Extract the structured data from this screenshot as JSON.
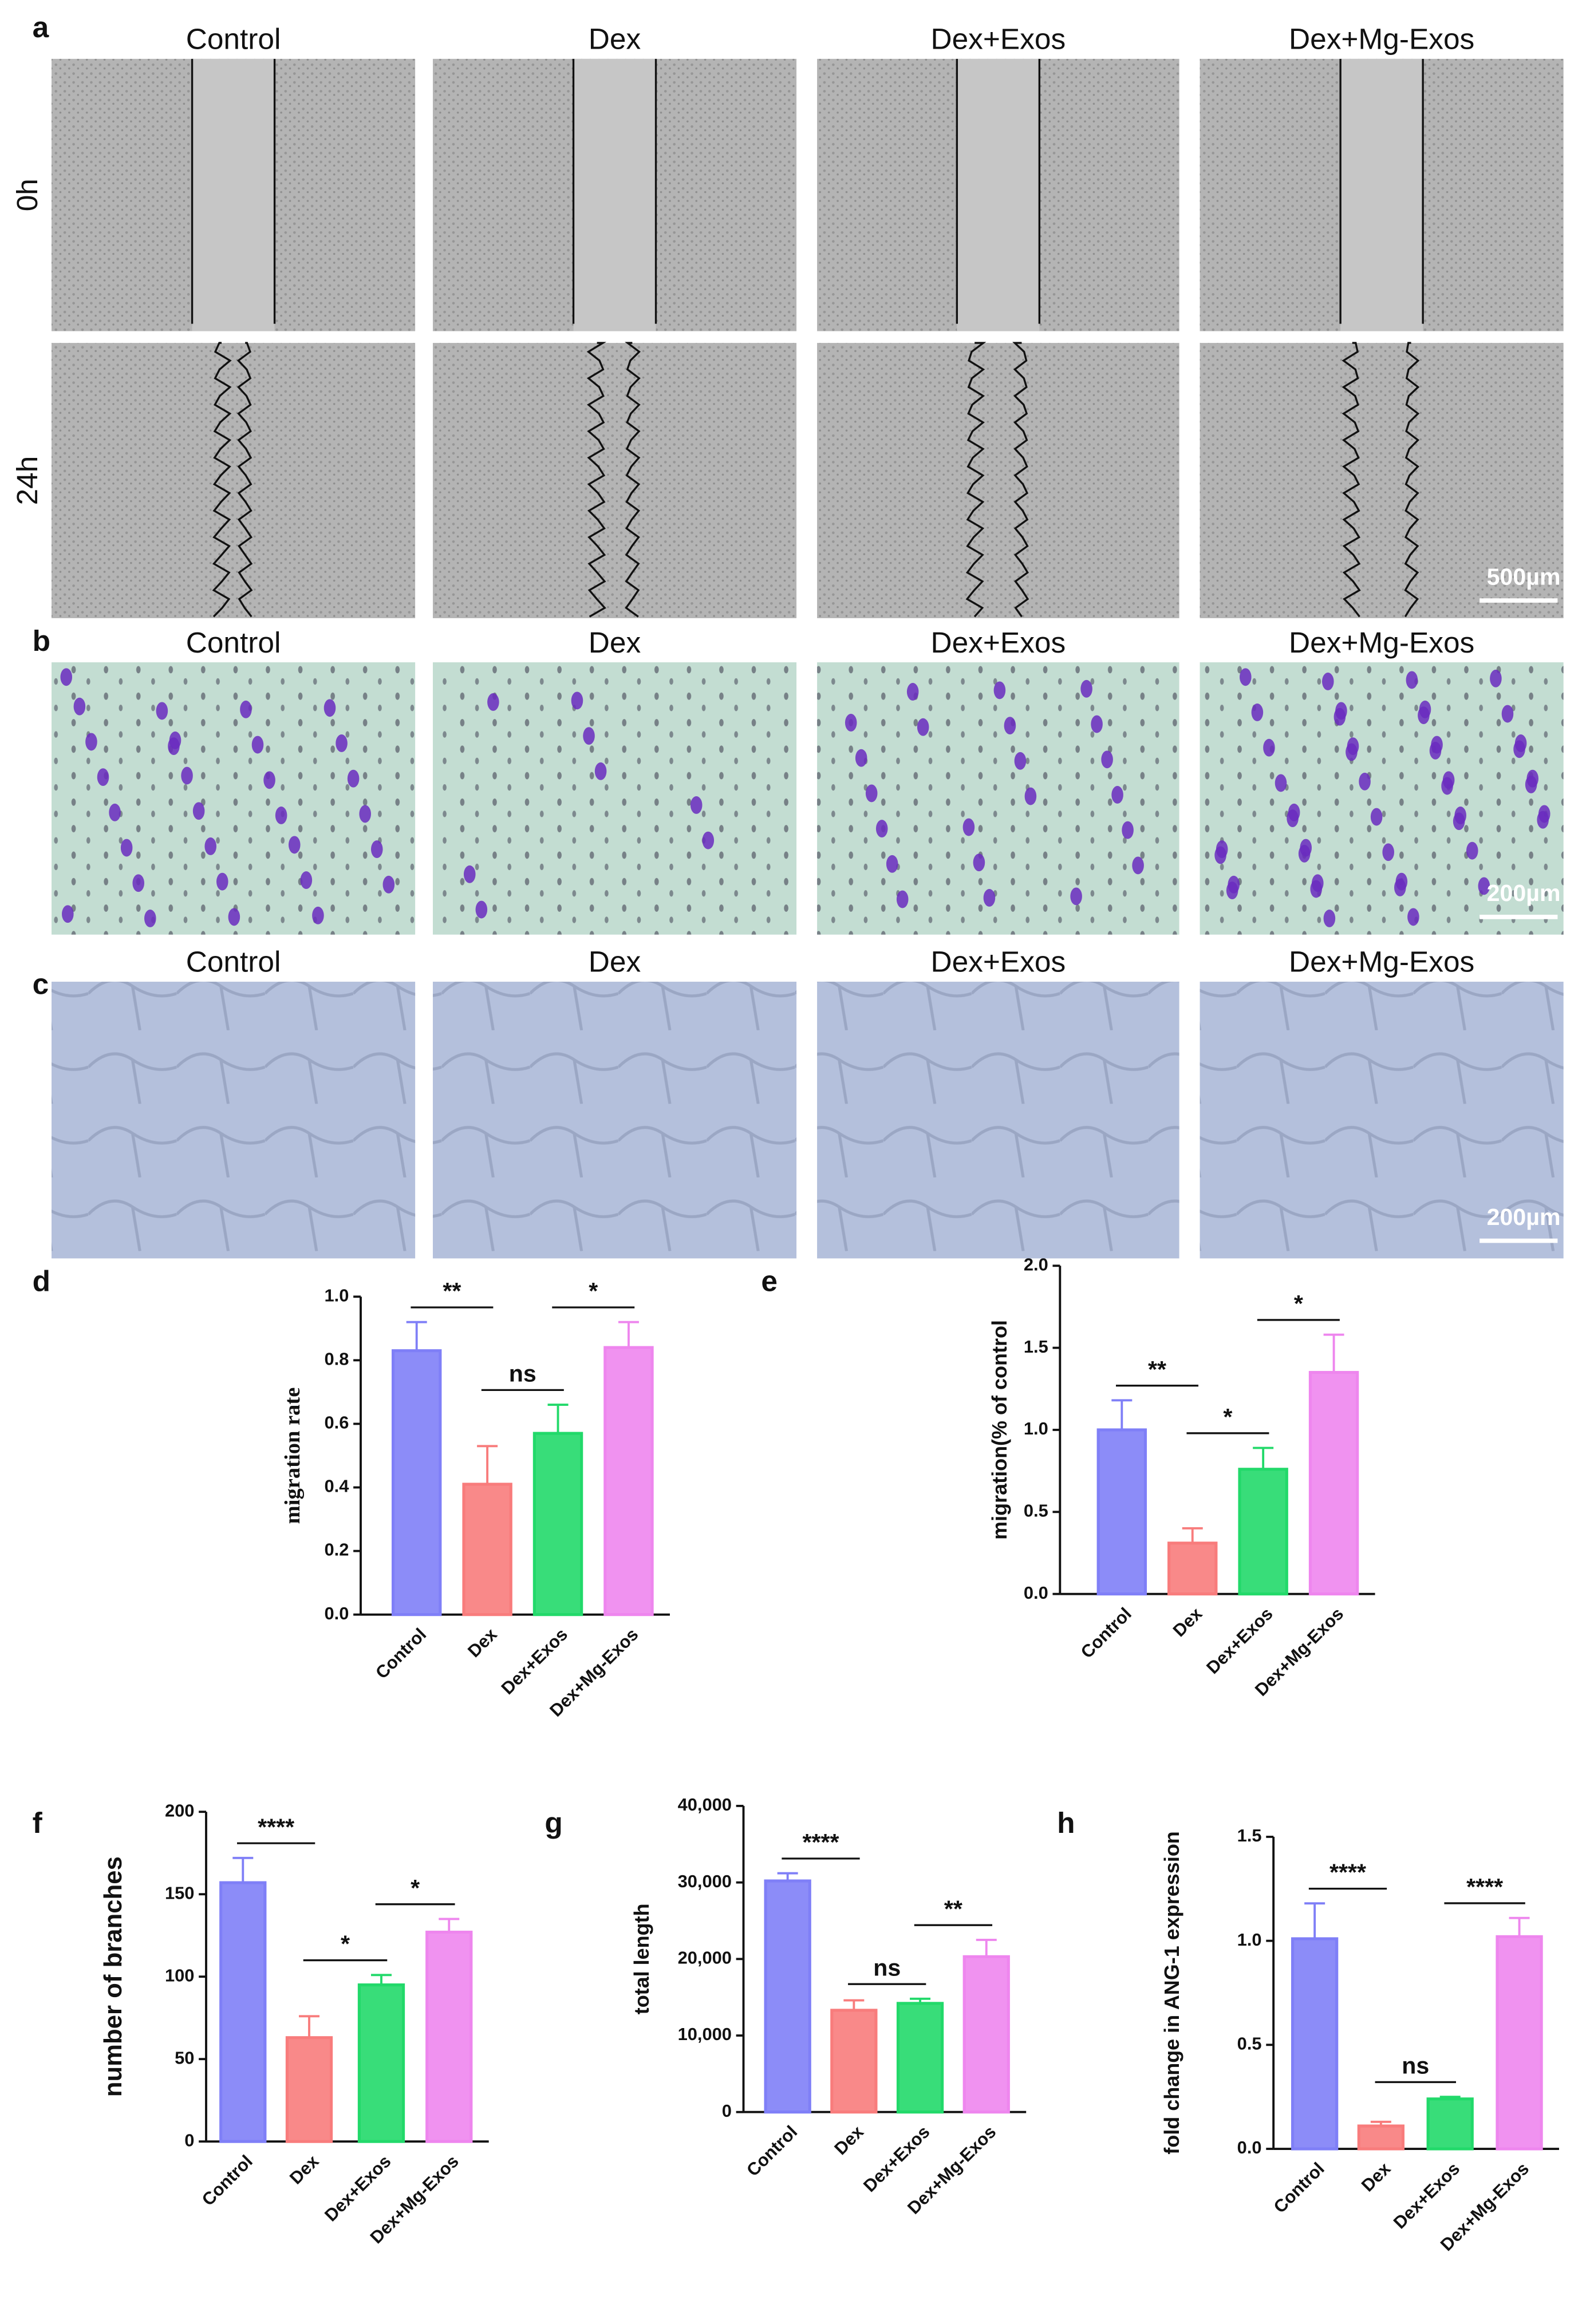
{
  "image_panels": [
    {
      "letter": "a",
      "columns": [
        "Control",
        "Dex",
        "Dex+Exos",
        "Dex+Mg-Exos"
      ],
      "rows": [
        "0h",
        "24h"
      ],
      "scale_bar": "500µm"
    },
    {
      "letter": "b",
      "columns": [
        "Control",
        "Dex",
        "Dex+Exos",
        "Dex+Mg-Exos"
      ],
      "scale_bar": "200µm"
    },
    {
      "letter": "c",
      "columns": [
        "Control",
        "Dex",
        "Dex+Exos",
        "Dex+Mg-Exos"
      ],
      "scale_bar": "200µm"
    }
  ],
  "chart_data": [
    {
      "type": "bar",
      "label": "d",
      "y_label": "migration rate",
      "categories": [
        "Control",
        "Dex",
        "Dex+Exos",
        "Dex+Mg-Exos"
      ],
      "values": [
        0.83,
        0.41,
        0.57,
        0.84
      ],
      "errors": [
        0.09,
        0.12,
        0.09,
        0.08
      ],
      "colors": [
        "#7f7ff7",
        "#f87c7c",
        "#22d96a",
        "#ee86ee"
      ],
      "ylim": [
        0,
        1
      ],
      "yticks": [
        {
          "value": 0,
          "label": "0.0"
        },
        0.2,
        0.4,
        0.6,
        0.8,
        {
          "value": 1,
          "label": "1.0"
        }
      ],
      "annotations": [
        "**",
        "ns",
        "*"
      ]
    },
    {
      "type": "bar",
      "label": "e",
      "y_label": "migration(% of control",
      "categories": [
        "Control",
        "Dex",
        "Dex+Exos",
        "Dex+Mg-Exos"
      ],
      "values": [
        1.0,
        0.31,
        0.76,
        1.35
      ],
      "errors": [
        0.18,
        0.09,
        0.13,
        0.23
      ],
      "colors": [
        "#7f7ff7",
        "#f87c7c",
        "#22d96a",
        "#ee86ee"
      ],
      "ylim": [
        0,
        2
      ],
      "yticks": [
        {
          "value": 0,
          "label": "0.0"
        },
        0.5,
        {
          "value": 1,
          "label": "1.0"
        },
        1.5,
        {
          "value": 2,
          "label": "2.0"
        }
      ],
      "annotations": [
        "**",
        "*",
        "*"
      ]
    },
    {
      "type": "bar",
      "label": "f",
      "y_label": "number of branches",
      "categories": [
        "Control",
        "Dex",
        "Dex+Exos",
        "Dex+Mg-Exos"
      ],
      "values": [
        157,
        63,
        95,
        127
      ],
      "errors": [
        15,
        13,
        6,
        8
      ],
      "colors": [
        "#7f7ff7",
        "#f87c7c",
        "#22d96a",
        "#ee86ee"
      ],
      "ylim": [
        0,
        200
      ],
      "yticks": [
        0,
        50,
        100,
        150,
        200
      ],
      "annotations": [
        "****",
        "*",
        "*"
      ]
    },
    {
      "type": "bar",
      "label": "g",
      "y_label": "total length",
      "categories": [
        "Control",
        "Dex",
        "Dex+Exos",
        "Dex+Mg-Exos"
      ],
      "values": [
        30200,
        13300,
        14200,
        20300
      ],
      "errors": [
        1000,
        1300,
        600,
        2200
      ],
      "colors": [
        "#7f7ff7",
        "#f87c7c",
        "#22d96a",
        "#ee86ee"
      ],
      "ylim": [
        0,
        40000
      ],
      "yticks": [
        0,
        {
          "value": 10000,
          "label": "10,000"
        },
        {
          "value": 20000,
          "label": "20,000"
        },
        {
          "value": 30000,
          "label": "30,000"
        },
        {
          "value": 40000,
          "label": "40,000"
        }
      ],
      "annotations": [
        "****",
        "ns",
        "**"
      ]
    },
    {
      "type": "bar",
      "label": "h",
      "y_label": "fold change in ANG-1 expression",
      "categories": [
        "Control",
        "Dex",
        "Dex+Exos",
        "Dex+Mg-Exos"
      ],
      "values": [
        1.01,
        0.11,
        0.24,
        1.02
      ],
      "errors": [
        0.17,
        0.02,
        0.01,
        0.09
      ],
      "colors": [
        "#7f7ff7",
        "#f87c7c",
        "#22d96a",
        "#ee86ee"
      ],
      "ylim": [
        0,
        1.5
      ],
      "yticks": [
        {
          "value": 0,
          "label": "0.0"
        },
        0.5,
        {
          "value": 1,
          "label": "1.0"
        },
        1.5
      ],
      "annotations": [
        "****",
        "ns",
        "****"
      ]
    }
  ]
}
